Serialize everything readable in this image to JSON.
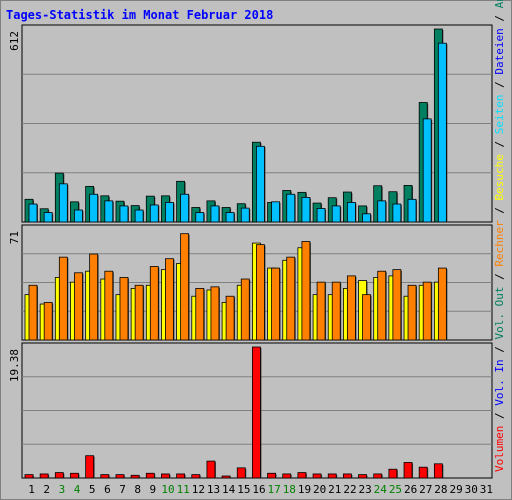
{
  "chart_data": {
    "type": "bar",
    "title": "Tages-Statistik im Monat Februar 2018",
    "x": [
      "1",
      "2",
      "3",
      "4",
      "5",
      "6",
      "7",
      "8",
      "9",
      "10",
      "11",
      "12",
      "13",
      "14",
      "15",
      "16",
      "17",
      "18",
      "19",
      "20",
      "21",
      "22",
      "23",
      "24",
      "25",
      "26",
      "27",
      "28",
      "29",
      "30",
      "31"
    ],
    "weekend_days": [
      "3",
      "4",
      "10",
      "11",
      "17",
      "18",
      "24",
      "25"
    ],
    "colors": {
      "background": "#c0c0c0",
      "title": "#0000ff",
      "anfragen": "#008060",
      "dateien": "#00c0ff",
      "seiten": "#00e0ff",
      "besuche": "#ffff00",
      "rechner": "#ff8000",
      "volumen": "#ff0000",
      "weekend_label": "#008000",
      "day_label": "#000000"
    },
    "panels": [
      {
        "id": "top",
        "max_label": "612",
        "ylim": [
          0,
          612
        ],
        "series": [
          {
            "name": "Anfragen",
            "color": "#008060",
            "values": [
              72,
              42,
              155,
              64,
              113,
              83,
              66,
              52,
              82,
              83,
              129,
              46,
              67,
              46,
              58,
              253,
              62,
              100,
              94,
              60,
              77,
              95,
              51,
              115,
              96,
              116,
              379,
              612,
              null,
              null,
              null
            ]
          },
          {
            "name": "Dateien",
            "color": "#00c0ff",
            "values": [
              57,
              30,
              121,
              38,
              88,
              67,
              51,
              38,
              54,
              62,
              88,
              30,
              51,
              30,
              44,
              240,
              64,
              88,
              78,
              43,
              51,
              62,
              26,
              67,
              57,
              72,
              327,
              567,
              null,
              null,
              null
            ]
          }
        ]
      },
      {
        "id": "middle",
        "max_label": "71",
        "ylim": [
          0,
          71
        ],
        "series": [
          {
            "name": "Besuche",
            "color": "#ffff00",
            "values": [
              29,
              23,
              40,
              37,
              44,
              39,
              29,
              33,
              35,
              45,
              49,
              28,
              32,
              24,
              35,
              62,
              46,
              51,
              59,
              29,
              29,
              33,
              38,
              40,
              41,
              28,
              35,
              37,
              null,
              null,
              null
            ]
          },
          {
            "name": "Rechner",
            "color": "#ff8000",
            "values": [
              35,
              24,
              53,
              43,
              55,
              44,
              40,
              35,
              47,
              52,
              68,
              33,
              34,
              28,
              39,
              61,
              46,
              53,
              63,
              37,
              37,
              41,
              29,
              44,
              45,
              35,
              37,
              46,
              null,
              null,
              null
            ]
          }
        ]
      },
      {
        "id": "bottom",
        "max_label": "19.38",
        "ylim": [
          0,
          19.38
        ],
        "series": [
          {
            "name": "Volumen",
            "color": "#ff0000",
            "values": [
              0.5,
              0.6,
              0.8,
              0.7,
              3.3,
              0.5,
              0.5,
              0.4,
              0.7,
              0.6,
              0.6,
              0.5,
              2.5,
              0.2,
              1.5,
              19.38,
              0.7,
              0.6,
              0.8,
              0.6,
              0.6,
              0.6,
              0.5,
              0.6,
              1.3,
              2.3,
              1.6,
              2.1,
              null,
              null,
              null
            ]
          }
        ]
      }
    ],
    "right_legend": [
      {
        "text": "Volumen",
        "color": "#ff0000"
      },
      {
        "text": " / ",
        "color": "#000000"
      },
      {
        "text": "Vol. In",
        "color": "#0000ff"
      },
      {
        "text": " / ",
        "color": "#000000"
      },
      {
        "text": "Vol. Out",
        "color": "#008060"
      },
      {
        "text": " / ",
        "color": "#000000"
      },
      {
        "text": "Rechner",
        "color": "#ff8000"
      },
      {
        "text": " / ",
        "color": "#000000"
      },
      {
        "text": "Besuche",
        "color": "#ffff00"
      },
      {
        "text": " / ",
        "color": "#000000"
      },
      {
        "text": "Seiten",
        "color": "#00e0ff"
      },
      {
        "text": " / ",
        "color": "#000000"
      },
      {
        "text": "Dateien",
        "color": "#0000ff"
      },
      {
        "text": " / ",
        "color": "#000000"
      },
      {
        "text": "Anfragen",
        "color": "#008060"
      }
    ]
  }
}
